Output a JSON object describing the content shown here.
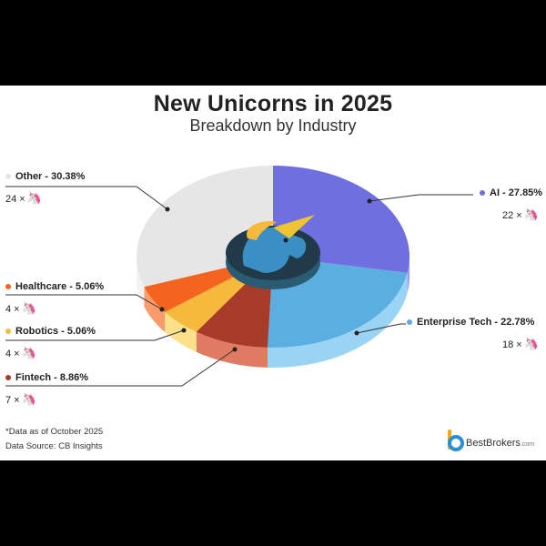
{
  "chart_data": {
    "type": "pie",
    "title": "New Unicorns in 2025",
    "subtitle": "Breakdown by Industry",
    "slices": [
      {
        "name": "AI",
        "label": "AI - 27.85%",
        "value": 27.85,
        "count": 22,
        "count_label": "22 ×",
        "color": "#6f6fe0",
        "side": "#9b9bf2"
      },
      {
        "name": "Enterprise Tech",
        "label": "Enterprise Tech - 22.78%",
        "value": 22.78,
        "count": 18,
        "count_label": "18 ×",
        "color": "#5aaee0",
        "side": "#9ad4f5"
      },
      {
        "name": "Fintech",
        "label": "Fintech - 8.86%",
        "value": 8.86,
        "count": 7,
        "count_label": "7 ×",
        "color": "#a83a2a",
        "side": "#e07a62"
      },
      {
        "name": "Robotics",
        "label": "Robotics - 5.06%",
        "value": 5.06,
        "count": 4,
        "count_label": "4 ×",
        "color": "#f5b93c",
        "side": "#fde08a"
      },
      {
        "name": "Healthcare",
        "label": "Healthcare - 5.06%",
        "value": 5.06,
        "count": 4,
        "count_label": "4 ×",
        "color": "#f5641e",
        "side": "#fb9a6a"
      },
      {
        "name": "Other",
        "label": "Other - 30.38%",
        "value": 30.38,
        "count": 24,
        "count_label": "24 ×",
        "color": "#e6e6e6",
        "side": "#f3f3f3"
      }
    ],
    "legend_placement": "around"
  },
  "footer": {
    "note": "*Data as of October 2025",
    "source": "Data Source: CB Insights",
    "brand": "BestBrokers",
    "brand_suffix": ".com"
  },
  "icons": {
    "unicorn": "unicorn-icon",
    "logo": "bestbrokers-logo"
  }
}
